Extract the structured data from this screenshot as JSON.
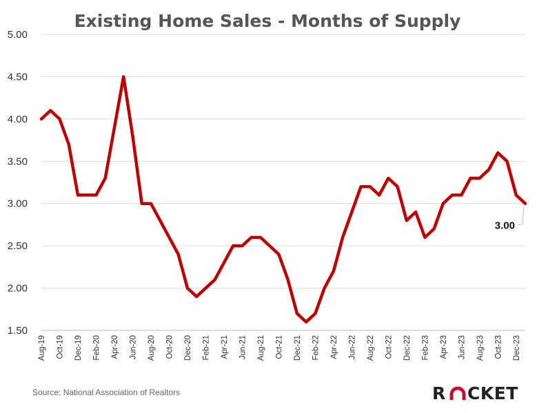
{
  "chart_data": {
    "type": "line",
    "title": "Existing Home Sales - Months of Supply",
    "xlabel": "",
    "ylabel": "",
    "ylim": [
      1.5,
      5.0
    ],
    "yticks": [
      "1.50",
      "2.00",
      "2.50",
      "3.00",
      "3.50",
      "4.00",
      "4.50",
      "5.00"
    ],
    "x": [
      "Aug-19",
      "Sep-19",
      "Oct-19",
      "Nov-19",
      "Dec-19",
      "Jan-20",
      "Feb-20",
      "Mar-20",
      "Apr-20",
      "May-20",
      "Jun-20",
      "Jul-20",
      "Aug-20",
      "Sep-20",
      "Oct-20",
      "Nov-20",
      "Dec-20",
      "Jan-21",
      "Feb-21",
      "Mar-21",
      "Apr-21",
      "May-21",
      "Jun-21",
      "Jul-21",
      "Aug-21",
      "Sep-21",
      "Oct-21",
      "Nov-21",
      "Dec-21",
      "Jan-22",
      "Feb-22",
      "Mar-22",
      "Apr-22",
      "May-22",
      "Jun-22",
      "Jul-22",
      "Aug-22",
      "Sep-22",
      "Oct-22",
      "Nov-22",
      "Dec-22",
      "Jan-23",
      "Feb-23",
      "Mar-23",
      "Apr-23",
      "May-23",
      "Jun-23",
      "Jul-23",
      "Aug-23",
      "Sep-23",
      "Oct-23",
      "Nov-23",
      "Dec-23",
      "Jan-24"
    ],
    "xtick_labels": [
      "Aug-19",
      "Oct-19",
      "Dec-19",
      "Feb-20",
      "Apr-20",
      "Jun-20",
      "Aug-20",
      "Oct-20",
      "Dec-20",
      "Feb-21",
      "Apr-21",
      "Jun-21",
      "Aug-21",
      "Oct-21",
      "Dec-21",
      "Feb-22",
      "Apr-22",
      "Jun-22",
      "Aug-22",
      "Oct-22",
      "Dec-22",
      "Feb-23",
      "Apr-23",
      "Jun-23",
      "Aug-23",
      "Oct-23",
      "Dec-23"
    ],
    "series": [
      {
        "values": [
          4.0,
          4.1,
          4.0,
          3.7,
          3.1,
          3.1,
          3.1,
          3.3,
          3.9,
          4.5,
          3.8,
          3.0,
          3.0,
          2.8,
          2.6,
          2.4,
          2.0,
          1.9,
          2.0,
          2.1,
          2.3,
          2.5,
          2.5,
          2.6,
          2.6,
          2.5,
          2.4,
          2.1,
          1.7,
          1.6,
          1.7,
          2.0,
          2.2,
          2.6,
          2.9,
          3.2,
          3.2,
          3.1,
          3.3,
          3.2,
          2.8,
          2.9,
          2.6,
          2.7,
          3.0,
          3.1,
          3.1,
          3.3,
          3.3,
          3.4,
          3.6,
          3.5,
          3.1,
          3.0
        ],
        "color": "#c00000"
      }
    ],
    "annotations": [
      {
        "x": "Jan-24",
        "y": 3.0,
        "label": "3.00"
      }
    ],
    "grid": true,
    "legend": "none"
  },
  "footer": {
    "source": "Source: National Association of Realtors",
    "logo_text": "ROCKET",
    "logo_color": "#c8102e"
  }
}
